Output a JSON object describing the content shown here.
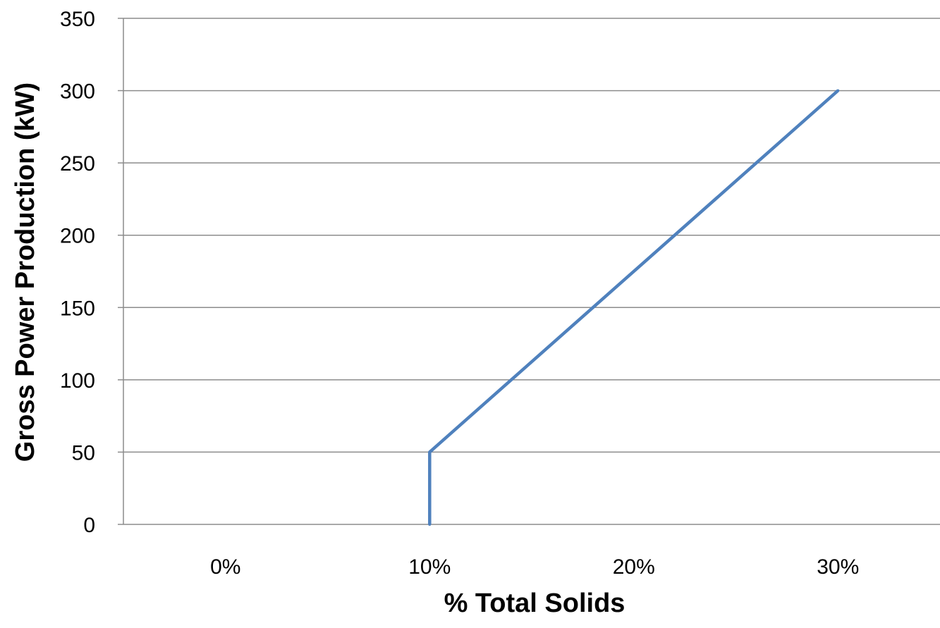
{
  "chart_data": {
    "type": "line",
    "title": "",
    "xlabel": "% Total Solids",
    "ylabel": "Gross Power Production (kW)",
    "x_categories": [
      "0%",
      "10%",
      "20%",
      "30%"
    ],
    "y_ticks": [
      "0",
      "50",
      "100",
      "150",
      "200",
      "250",
      "300",
      "350"
    ],
    "xlim": [
      -0.05,
      0.35
    ],
    "ylim": [
      0,
      350
    ],
    "grid": "horizontal",
    "legend": "none",
    "series": [
      {
        "color": "#4F81BD",
        "points": [
          {
            "x": 0.1,
            "y": 0
          },
          {
            "x": 0.1,
            "y": 50
          },
          {
            "x": 0.3,
            "y": 300
          }
        ]
      }
    ]
  },
  "colors": {
    "gridline": "#8c8c8c",
    "axis": "#8c8c8c",
    "series": "#4F81BD"
  }
}
